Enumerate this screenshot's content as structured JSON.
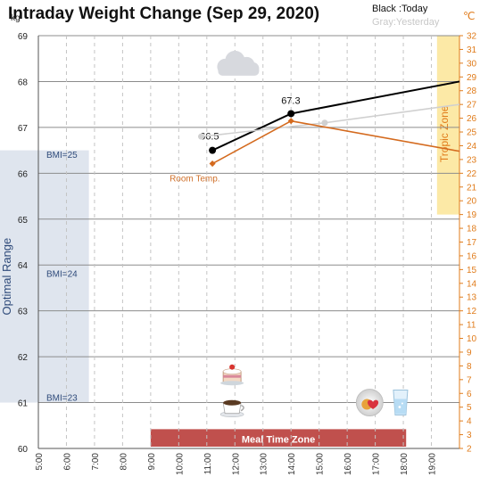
{
  "chart_data": {
    "type": "line",
    "title": "Intraday Weight Change (Sep 29, 2020)",
    "legend": {
      "today": "Black :Today",
      "yesterday": "Gray:Yesterday",
      "placement": "top-right"
    },
    "y_unit": "kg",
    "y2_unit": "℃",
    "ylim": [
      60,
      69
    ],
    "y_ticks": [
      "60",
      "61",
      "62",
      "63",
      "64",
      "65",
      "66",
      "67",
      "68",
      "69"
    ],
    "y2lim": [
      2,
      32
    ],
    "y2_ticks": [
      "2",
      "3",
      "4",
      "5",
      "6",
      "7",
      "8",
      "9",
      "10",
      "11",
      "12",
      "13",
      "14",
      "15",
      "16",
      "17",
      "18",
      "19",
      "20",
      "21",
      "22",
      "23",
      "24",
      "25",
      "26",
      "27",
      "28",
      "29",
      "30",
      "31",
      "32"
    ],
    "x_ticks": [
      "5:00",
      "6:00",
      "7:00",
      "8:00",
      "9:00",
      "10:00",
      "11:00",
      "12:00",
      "13:00",
      "14:00",
      "15:00",
      "16:00",
      "17:00",
      "18:00",
      "19:00"
    ],
    "x_ticks_values": [
      5,
      6,
      7,
      8,
      9,
      10,
      11,
      12,
      13,
      14,
      15,
      16,
      17,
      18,
      19
    ],
    "xlim": [
      5,
      20
    ],
    "grid": true,
    "series": [
      {
        "name": "Today",
        "color": "#000000",
        "x": [
          11.2,
          14.0,
          20.0
        ],
        "y": [
          66.5,
          67.3,
          68.0
        ],
        "marker_x": [
          11.2,
          14.0
        ],
        "labels": [
          "66.5",
          "67.3"
        ]
      },
      {
        "name": "Yesterday",
        "color": "#d0d0d0",
        "x": [
          10.8,
          15.2,
          20.0
        ],
        "y": [
          66.8,
          67.1,
          67.5
        ],
        "marker_x": [
          10.8,
          15.2
        ],
        "labels": []
      },
      {
        "name": "Room Temp.",
        "color": "#d46a1e",
        "axis": "y2",
        "x": [
          11.2,
          14.0,
          20.0
        ],
        "y": [
          22.7,
          25.8,
          23.6
        ],
        "marker_x": [
          11.2,
          14.0
        ],
        "labels": []
      }
    ],
    "annotations": {
      "optimal_range": {
        "label": "Optimal Range",
        "ymin": 61,
        "ymax": 66.5,
        "x_end": 6.8,
        "color": "#dfe5ee"
      },
      "bmi_lines": [
        {
          "label": "BMI=25",
          "y": 66.4
        },
        {
          "label": "BMI=24",
          "y": 63.8
        },
        {
          "label": "BMI=23",
          "y": 61.1
        }
      ],
      "tropic_zone": {
        "label": "Tropic Zone",
        "y2min": 19,
        "y2max": 32,
        "xmin": 19.2,
        "color": "#fce9a6"
      },
      "meal_time_zone": {
        "label": "Meal Time Zone",
        "xmin": 9,
        "xmax": 18.1,
        "color": "#c0504d"
      },
      "icons": [
        {
          "name": "cloud-icon",
          "x": 12.1,
          "y": 68.4
        },
        {
          "name": "cake-icon",
          "x": 11.9,
          "y": 61.6
        },
        {
          "name": "coffee-icon",
          "x": 11.9,
          "y": 60.9
        },
        {
          "name": "fruit-plate-icon",
          "x": 16.8,
          "y": 61.0
        },
        {
          "name": "water-glass-icon",
          "x": 17.9,
          "y": 61.0
        }
      ]
    }
  }
}
